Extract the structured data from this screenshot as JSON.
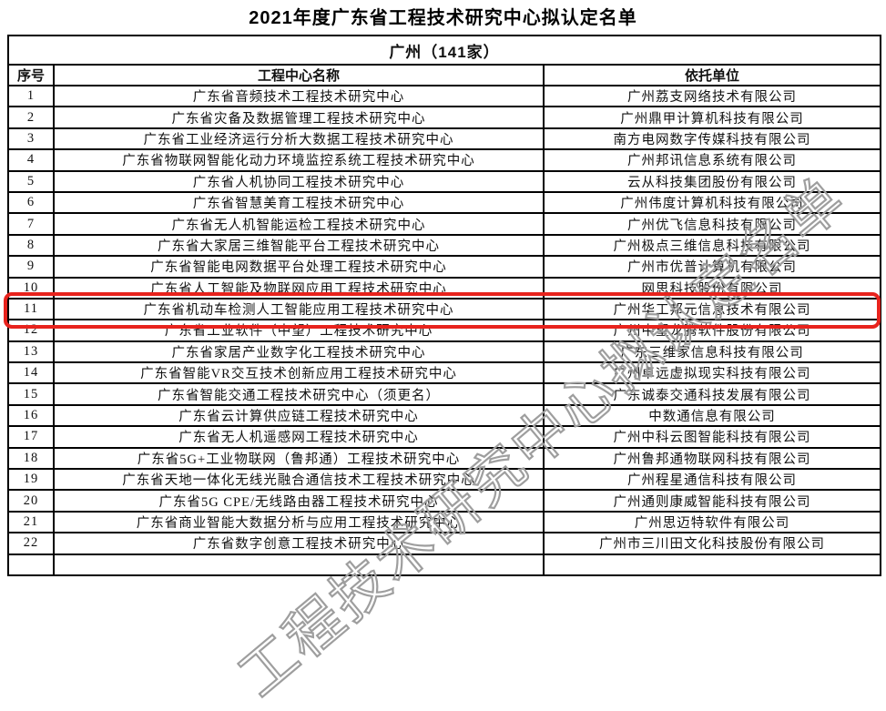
{
  "page": {
    "title": "2021年度广东省工程技术研究中心拟认定名单"
  },
  "table": {
    "region_header": "广州（141家）",
    "columns": [
      "序号",
      "工程中心名称",
      "依托单位"
    ],
    "rows": [
      {
        "num": "1",
        "name": "广东省音频技术工程技术研究中心",
        "unit": "广州荔支网络技术有限公司"
      },
      {
        "num": "2",
        "name": "广东省灾备及数据管理工程技术研究中心",
        "unit": "广州鼎甲计算机科技有限公司"
      },
      {
        "num": "3",
        "name": "广东省工业经济运行分析大数据工程技术研究中心",
        "unit": "南方电网数字传媒科技有限公司"
      },
      {
        "num": "4",
        "name": "广东省物联网智能化动力环境监控系统工程技术研究中心",
        "unit": "广州邦讯信息系统有限公司"
      },
      {
        "num": "5",
        "name": "广东省人机协同工程技术研究中心",
        "unit": "云从科技集团股份有限公司"
      },
      {
        "num": "6",
        "name": "广东省智慧美育工程技术研究中心",
        "unit": "广州伟度计算机科技有限公司"
      },
      {
        "num": "7",
        "name": "广东省无人机智能运检工程技术研究中心",
        "unit": "广州优飞信息科技有限公司"
      },
      {
        "num": "8",
        "name": "广东省大家居三维智能平台工程技术研究中心",
        "unit": "广州极点三维信息科技有限公司"
      },
      {
        "num": "9",
        "name": "广东省智能电网数据平台处理工程技术研究中心",
        "unit": "广州市优普计算机有限公司"
      },
      {
        "num": "10",
        "name": "广东省人工智能及物联网应用工程技术研究中心",
        "unit": "网思科技股份有限公司"
      },
      {
        "num": "11",
        "name": "广东省机动车检测人工智能应用工程技术研究中心",
        "unit": "广州华工邦元信息技术有限公司"
      },
      {
        "num": "12",
        "name": "广东省工业软件（中望）工程技术研究中心",
        "unit": "广州中望龙腾软件股份有限公司"
      },
      {
        "num": "13",
        "name": "广东省家居产业数字化工程技术研究中心",
        "unit": "广东三维家信息科技有限公司"
      },
      {
        "num": "14",
        "name": "广东省智能VR交互技术创新应用工程技术研究中心",
        "unit": "广州卓远虚拟现实科技有限公司"
      },
      {
        "num": "15",
        "name": "广东省智能交通工程技术研究中心（须更名）",
        "unit": "广东诚泰交通科技发展有限公司"
      },
      {
        "num": "16",
        "name": "广东省云计算供应链工程技术研究中心",
        "unit": "中数通信息有限公司"
      },
      {
        "num": "17",
        "name": "广东省无人机遥感网工程技术研究中心",
        "unit": "广州中科云图智能科技有限公司"
      },
      {
        "num": "18",
        "name": "广东省5G+工业物联网（鲁邦通）工程技术研究中心",
        "unit": "广州鲁邦通物联网科技有限公司"
      },
      {
        "num": "19",
        "name": "广东省天地一体化无线光融合通信技术工程技术研究中心",
        "unit": "广州程星通信科技有限公司"
      },
      {
        "num": "20",
        "name": "广东省5G CPE/无线路由器工程技术研究中心",
        "unit": "广州通则康威智能科技有限公司"
      },
      {
        "num": "21",
        "name": "广东省商业智能大数据分析与应用工程技术研究中心",
        "unit": "广州思迈特软件有限公司"
      },
      {
        "num": "22",
        "name": "广东省数字创意工程技术研究中心",
        "unit": "广州市三川田文化科技股份有限公司"
      }
    ],
    "highlight": {
      "row_num": "10",
      "color": "#e8231d"
    }
  },
  "watermark": {
    "text": "工程技术研究中心拟认定名单"
  }
}
